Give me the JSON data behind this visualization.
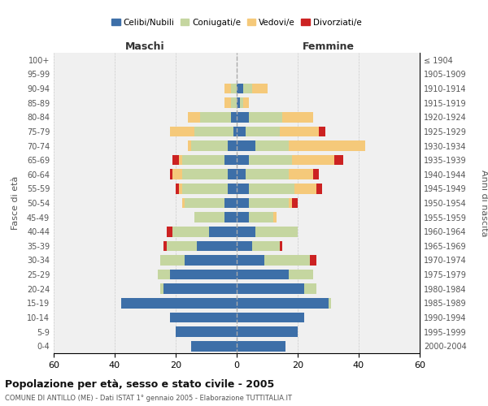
{
  "age_groups": [
    "100+",
    "95-99",
    "90-94",
    "85-89",
    "80-84",
    "75-79",
    "70-74",
    "65-69",
    "60-64",
    "55-59",
    "50-54",
    "45-49",
    "40-44",
    "35-39",
    "30-34",
    "25-29",
    "20-24",
    "15-19",
    "10-14",
    "5-9",
    "0-4"
  ],
  "birth_years": [
    "≤ 1904",
    "1905-1909",
    "1910-1914",
    "1915-1919",
    "1920-1924",
    "1925-1929",
    "1930-1934",
    "1935-1939",
    "1940-1944",
    "1945-1949",
    "1950-1954",
    "1955-1959",
    "1960-1964",
    "1965-1969",
    "1970-1974",
    "1975-1979",
    "1980-1984",
    "1985-1989",
    "1990-1994",
    "1995-1999",
    "2000-2004"
  ],
  "male_celibi": [
    0,
    0,
    0,
    0,
    2,
    1,
    3,
    4,
    3,
    3,
    4,
    4,
    9,
    13,
    17,
    22,
    24,
    38,
    22,
    20,
    15
  ],
  "male_coniugati": [
    0,
    0,
    2,
    2,
    10,
    13,
    12,
    14,
    15,
    15,
    13,
    10,
    12,
    10,
    8,
    4,
    1,
    0,
    0,
    0,
    0
  ],
  "male_vedovi": [
    0,
    0,
    2,
    2,
    4,
    8,
    1,
    1,
    3,
    1,
    1,
    0,
    0,
    0,
    0,
    0,
    0,
    0,
    0,
    0,
    0
  ],
  "male_divorziati": [
    0,
    0,
    0,
    0,
    0,
    0,
    0,
    2,
    1,
    1,
    0,
    0,
    2,
    1,
    0,
    0,
    0,
    0,
    0,
    0,
    0
  ],
  "female_celibi": [
    0,
    0,
    2,
    1,
    4,
    3,
    6,
    4,
    3,
    4,
    4,
    4,
    6,
    5,
    9,
    17,
    22,
    30,
    22,
    20,
    16
  ],
  "female_coniugati": [
    0,
    0,
    3,
    1,
    11,
    11,
    11,
    14,
    14,
    15,
    13,
    8,
    14,
    9,
    15,
    8,
    4,
    1,
    0,
    0,
    0
  ],
  "female_vedovi": [
    0,
    0,
    5,
    2,
    10,
    13,
    25,
    14,
    8,
    7,
    1,
    1,
    0,
    0,
    0,
    0,
    0,
    0,
    0,
    0,
    0
  ],
  "female_divorziati": [
    0,
    0,
    0,
    0,
    0,
    2,
    0,
    3,
    2,
    2,
    2,
    0,
    0,
    1,
    2,
    0,
    0,
    0,
    0,
    0,
    0
  ],
  "colors": {
    "celibi": "#3d6fa8",
    "coniugati": "#c5d6a0",
    "vedovi": "#f5c97a",
    "divorziati": "#cc2222"
  },
  "xlim": 60,
  "title_main": "Popolazione per età, sesso e stato civile - 2005",
  "title_sub": "COMUNE DI ANTILLO (ME) - Dati ISTAT 1° gennaio 2005 - Elaborazione TUTTITALIA.IT",
  "ylabel": "Fasce di età",
  "ylabel_right": "Anni di nascita",
  "xlabel_maschi": "Maschi",
  "xlabel_femmine": "Femmine",
  "legend_labels": [
    "Celibi/Nubili",
    "Coniugati/e",
    "Vedovi/e",
    "Divorziati/e"
  ],
  "bg_color": "#f0f0f0",
  "fig_color": "#ffffff"
}
